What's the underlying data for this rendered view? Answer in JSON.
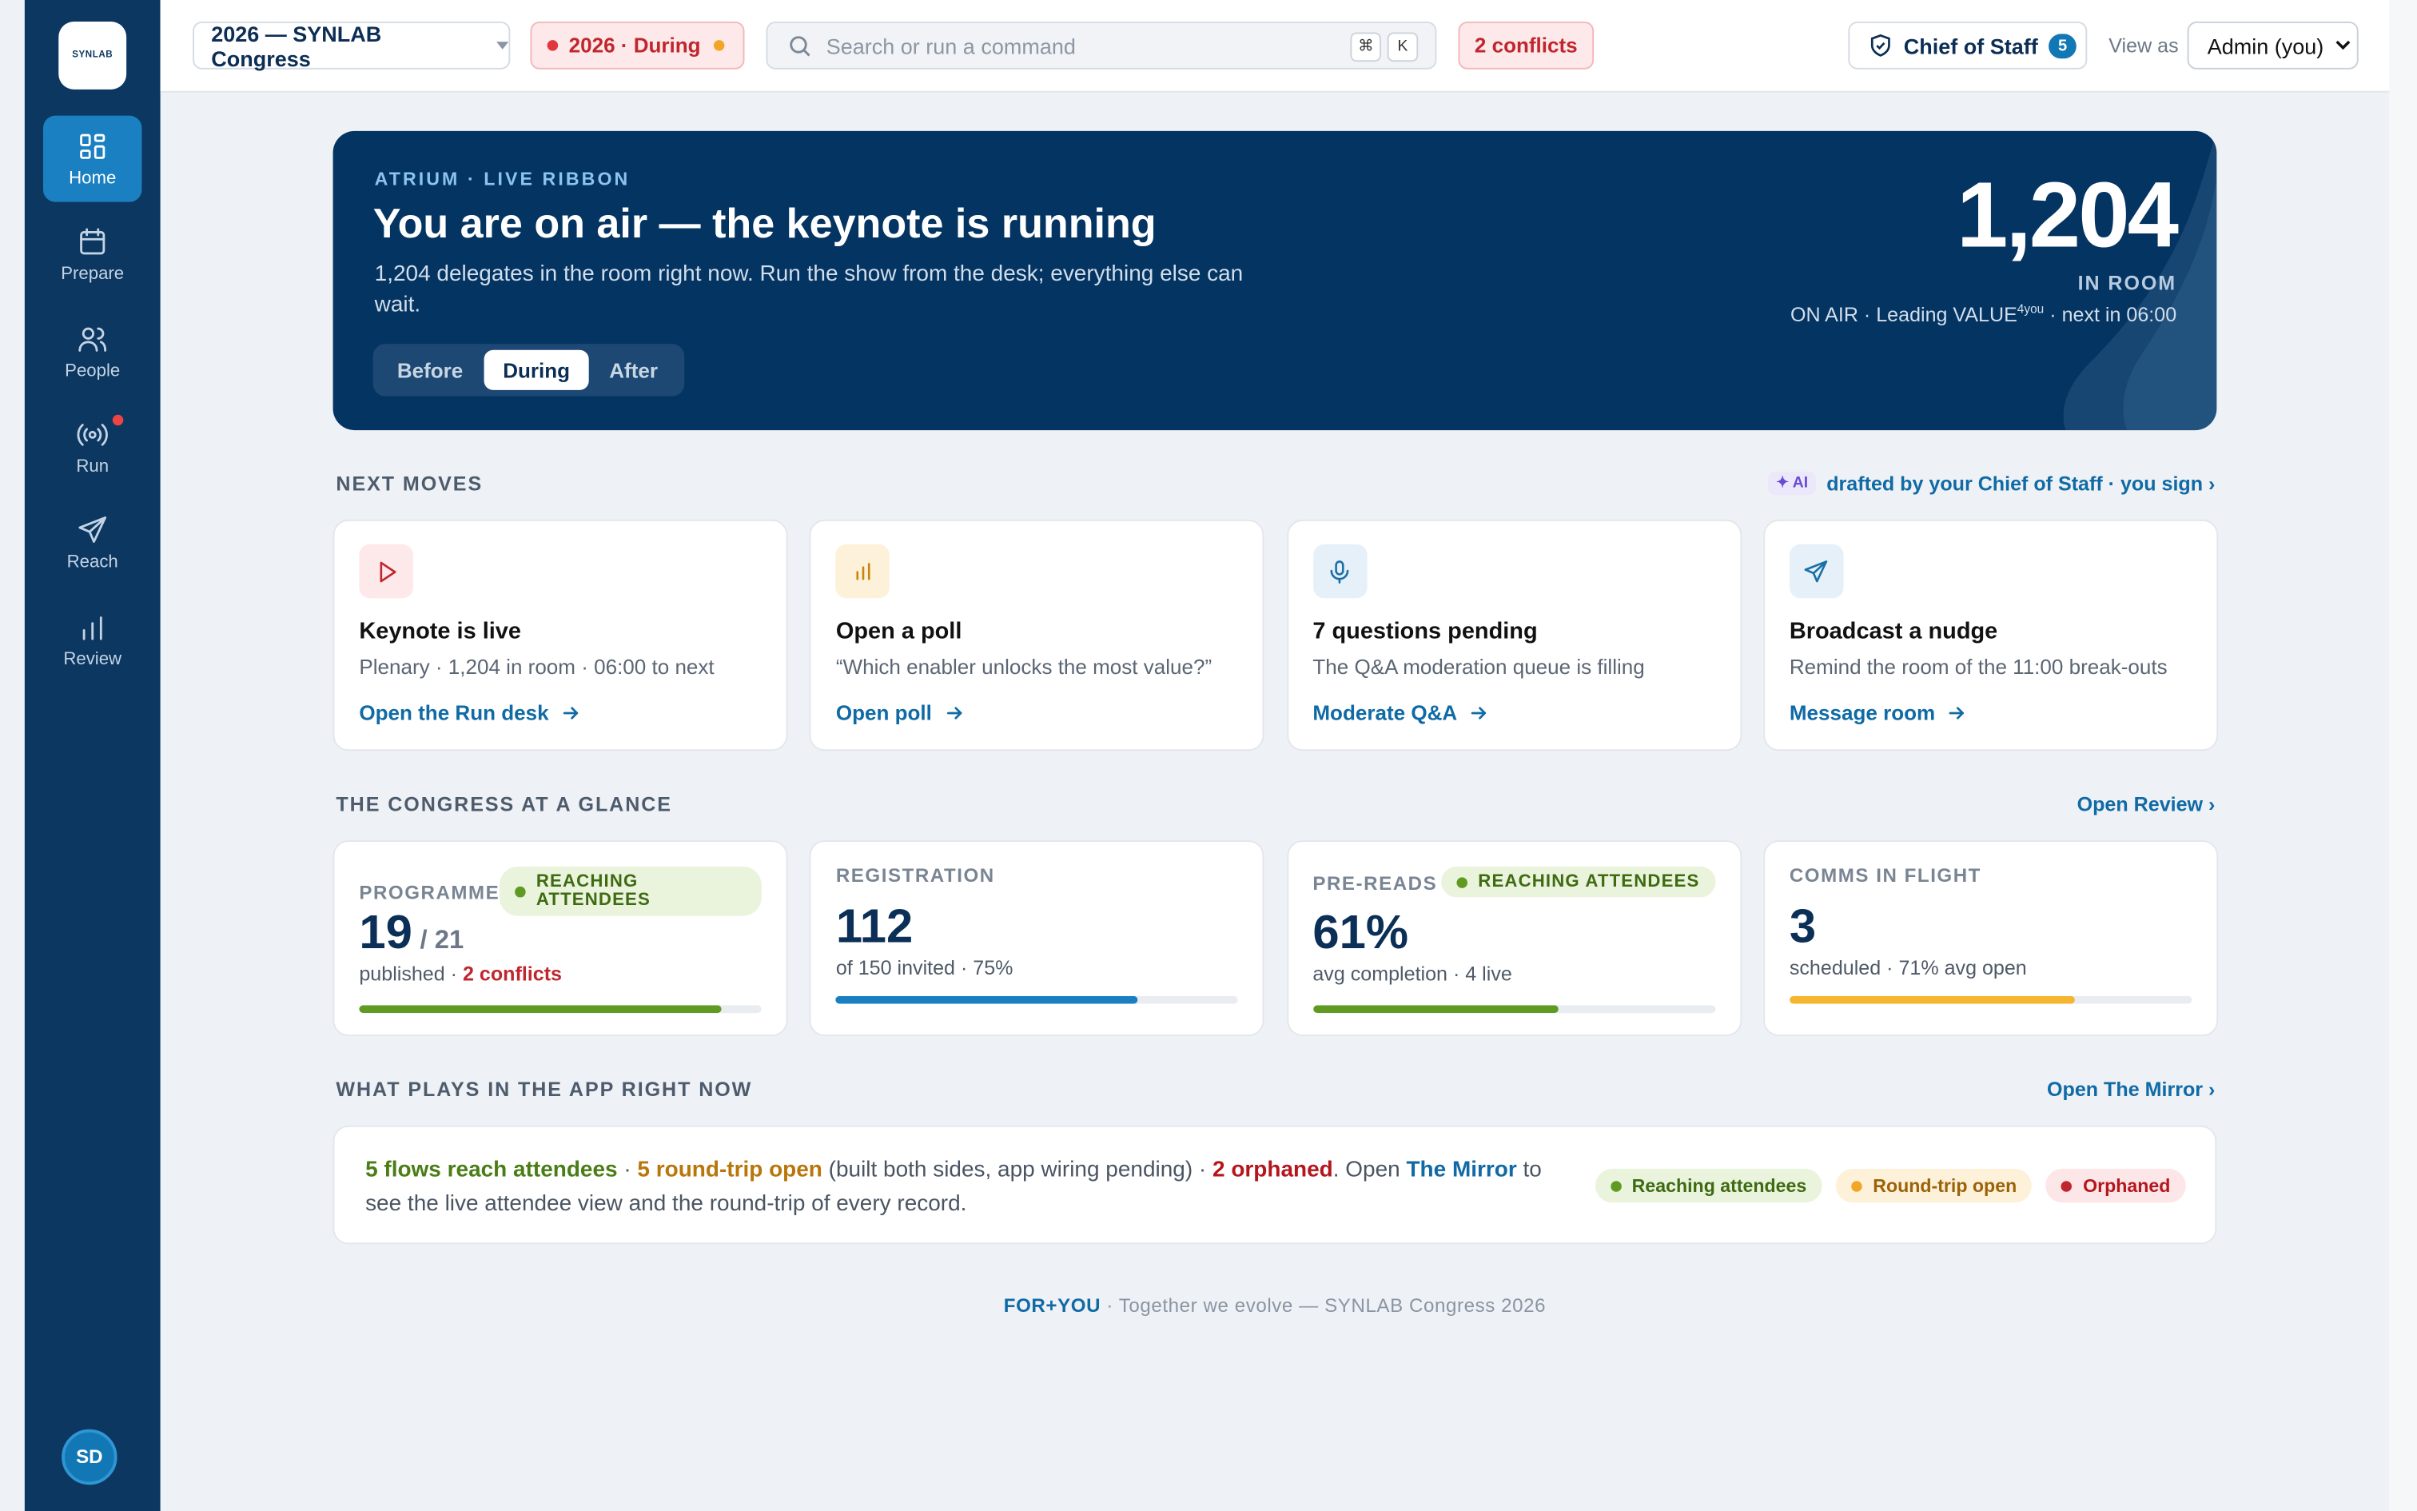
{
  "sidebar": {
    "logo": "SYNLAB",
    "nav": [
      "Home",
      "Prepare",
      "People",
      "Run",
      "Reach",
      "Review"
    ],
    "avatar": "SD"
  },
  "topbar": {
    "event": "2026 — SYNLAB Congress",
    "phase": "2026 · During",
    "search": "Search or run a command",
    "keys": [
      "⌘",
      "K"
    ],
    "conflicts": "2 conflicts",
    "chief": "Chief of Staff",
    "chief_count": "5",
    "view_as_label": "View as",
    "view_as": "Admin (you)"
  },
  "hero": {
    "eyebrow": "ATRIUM · LIVE RIBBON",
    "title": "You are on air — the keynote is running",
    "text": "1,204 delegates in the room right now. Run the show from the desk; everything else can wait.",
    "phases": [
      "Before",
      "During",
      "After"
    ],
    "count": "1,204",
    "count_label": "IN ROOM",
    "status": "ON AIR · Leading VALUE",
    "status_sup": "4you",
    "status_tail": " · next in 06:00"
  },
  "next_moves": {
    "title": "NEXT MOVES",
    "ai": "AI",
    "note": "drafted by your Chief of Staff · you sign ›",
    "cards": [
      {
        "title": "Keynote is live",
        "text": "Plenary · 1,204 in room · 06:00 to next",
        "link": "Open the Run desk"
      },
      {
        "title": "Open a poll",
        "text": "“Which enabler unlocks the most value?”",
        "link": "Open poll"
      },
      {
        "title": "7 questions pending",
        "text": "The Q&A moderation queue is filling",
        "link": "Moderate Q&A"
      },
      {
        "title": "Broadcast a nudge",
        "text": "Remind the room of the 11:00 break-outs",
        "link": "Message room"
      }
    ]
  },
  "glance": {
    "title": "THE CONGRESS AT A GLANCE",
    "link": "Open Review ›",
    "cards": [
      {
        "label": "PROGRAMME",
        "badge": "REACHING ATTENDEES",
        "value": "19",
        "value_sub": "/ 21",
        "text": "published · ",
        "alert": "2 conflicts",
        "progress": 90
      },
      {
        "label": "REGISTRATION",
        "value": "112",
        "text": "of 150 invited · 75%",
        "progress": 75
      },
      {
        "label": "PRE-READS",
        "badge": "REACHING ATTENDEES",
        "value": "61%",
        "text": "avg completion · 4 live",
        "progress": 61
      },
      {
        "label": "COMMS IN FLIGHT",
        "value": "3",
        "text": "scheduled · 71% avg open",
        "progress": 71
      }
    ]
  },
  "mirror": {
    "title": "WHAT PLAYS IN THE APP RIGHT NOW",
    "link": "Open The Mirror ›",
    "segments": [
      "5 flows reach attendees",
      " · ",
      "5 round-trip open",
      " (built both sides, app wiring pending) · ",
      "2 orphaned",
      ". Open ",
      "The Mirror",
      " to see the live attendee view and the round-trip of every record."
    ],
    "legend": [
      "Reaching attendees",
      "Round-trip open",
      "Orphaned"
    ]
  },
  "footer": {
    "brand": "FOR+YOU",
    "text": " · Together we evolve — SYNLAB Congress 2026"
  }
}
